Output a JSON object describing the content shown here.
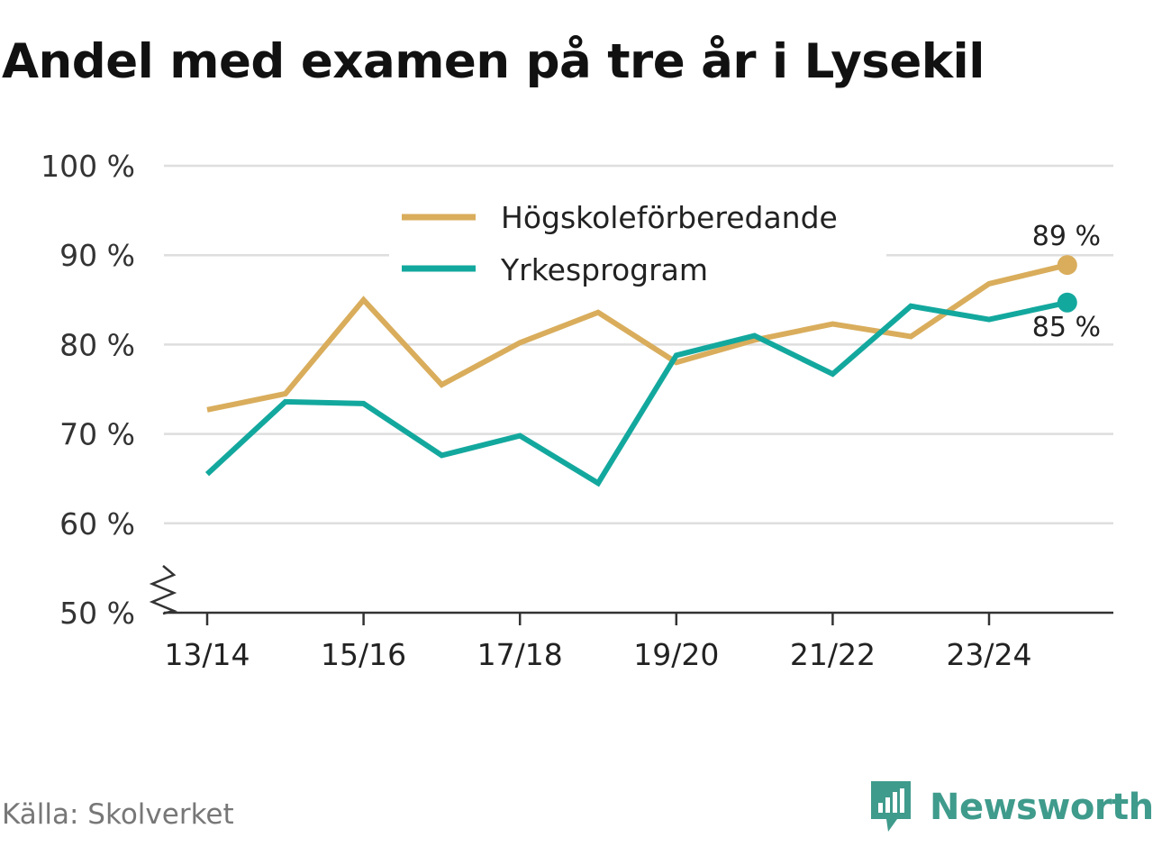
{
  "title": "Andel med examen på tre år i Lysekil",
  "source": "Källa: Skolverket",
  "brand": "Newsworthy",
  "colors": {
    "hogskole": "#d9ad5c",
    "yrkes": "#13a89e",
    "grid": "#dedede",
    "axis": "#333333",
    "brand": "#3f9b8c"
  },
  "chart_data": {
    "type": "line",
    "title": "Andel med examen på tre år i Lysekil",
    "x": [
      "13/14",
      "14/15",
      "15/16",
      "16/17",
      "17/18",
      "18/19",
      "19/20",
      "20/21",
      "21/22",
      "22/23",
      "23/24",
      "24/25"
    ],
    "x_tick_labels": [
      "13/14",
      "15/16",
      "17/18",
      "19/20",
      "21/22",
      "23/24"
    ],
    "y_ticks": [
      50,
      60,
      70,
      80,
      90,
      100
    ],
    "y_tick_labels": [
      "50 %",
      "60 %",
      "70 %",
      "80 %",
      "90 %",
      "100 %"
    ],
    "ylim": [
      50,
      100
    ],
    "y_axis_break": true,
    "grid": true,
    "legend_position": "top-center",
    "series": [
      {
        "name": "Högskoleförberedande",
        "values": [
          72.7,
          74.5,
          85.0,
          75.5,
          80.2,
          83.6,
          78.0,
          80.5,
          82.3,
          80.9,
          86.8,
          88.9
        ],
        "end_label": "89 %"
      },
      {
        "name": "Yrkesprogram",
        "values": [
          65.5,
          73.6,
          73.4,
          67.6,
          69.8,
          64.5,
          78.8,
          81.0,
          76.7,
          84.3,
          82.8,
          84.7
        ],
        "end_label": "85 %"
      }
    ]
  }
}
